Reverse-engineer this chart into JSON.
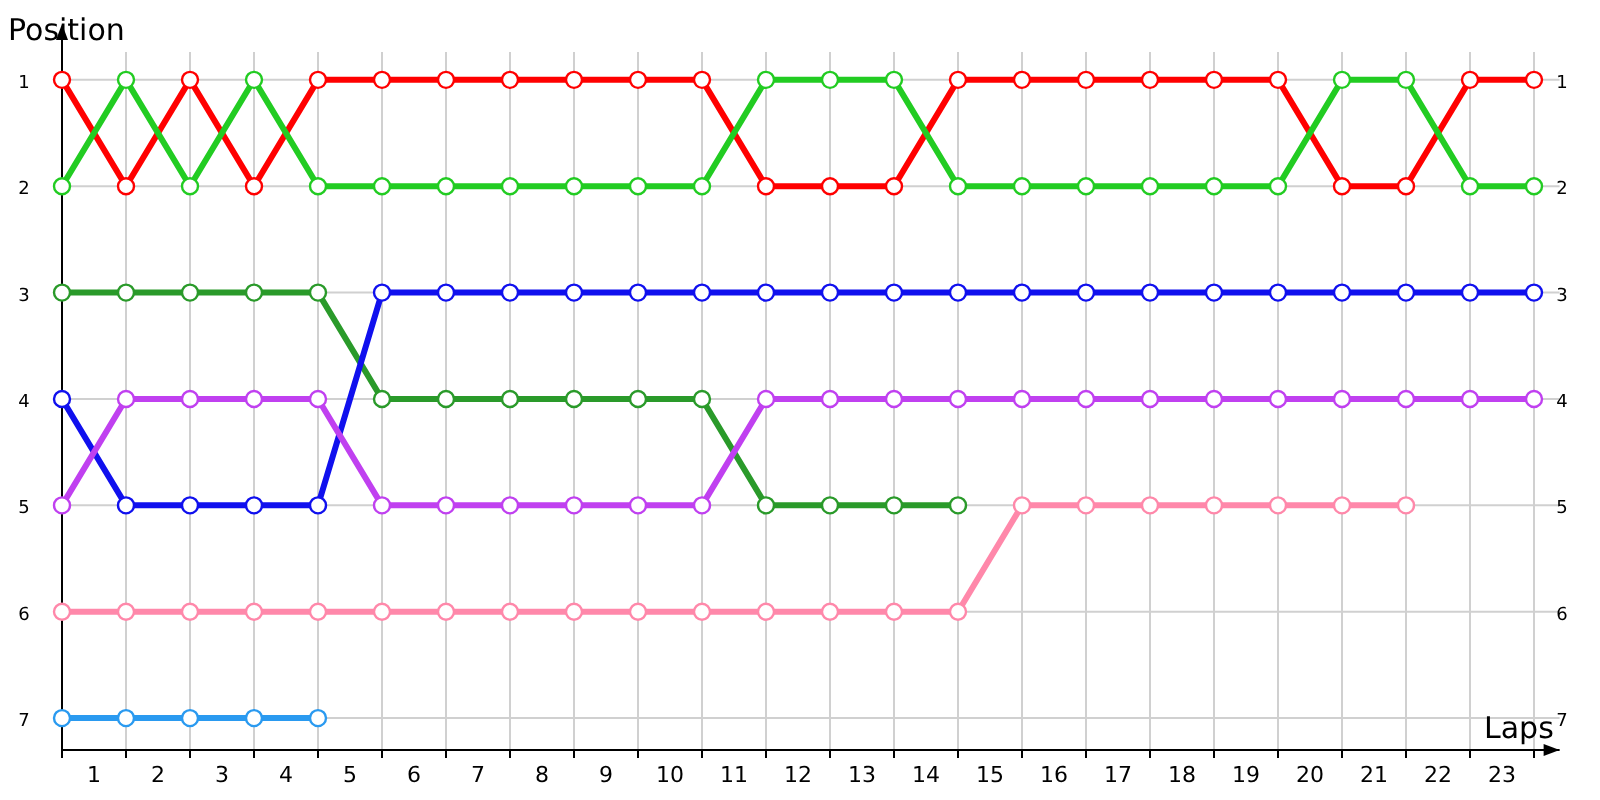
{
  "chart_data": {
    "type": "line",
    "xlabel": "Laps",
    "ylabel": "Position",
    "x": [
      0,
      1,
      2,
      3,
      4,
      5,
      6,
      7,
      8,
      9,
      10,
      11,
      12,
      13,
      14,
      15,
      16,
      17,
      18,
      19,
      20,
      21,
      22,
      23
    ],
    "series": [
      {
        "color": "#ff0000",
        "values": [
          1,
          2,
          1,
          2,
          1,
          1,
          1,
          1,
          1,
          1,
          1,
          2,
          2,
          2,
          1,
          1,
          1,
          1,
          1,
          1,
          2,
          2,
          1,
          1
        ]
      },
      {
        "color": "#22cc22",
        "values": [
          2,
          1,
          2,
          1,
          2,
          2,
          2,
          2,
          2,
          2,
          2,
          1,
          1,
          1,
          2,
          2,
          2,
          2,
          2,
          2,
          1,
          1,
          2,
          2
        ]
      },
      {
        "color": "#2a9a2a",
        "values": [
          3,
          3,
          3,
          3,
          3,
          4,
          4,
          4,
          4,
          4,
          4,
          5,
          5,
          5,
          5,
          null,
          null,
          null,
          null,
          null,
          null,
          null,
          null,
          null
        ]
      },
      {
        "color": "#1010ee",
        "values": [
          4,
          5,
          5,
          5,
          5,
          3,
          3,
          3,
          3,
          3,
          3,
          3,
          3,
          3,
          3,
          3,
          3,
          3,
          3,
          3,
          3,
          3,
          3,
          3
        ]
      },
      {
        "color": "#c040f0",
        "values": [
          5,
          4,
          4,
          4,
          4,
          5,
          5,
          5,
          5,
          5,
          5,
          4,
          4,
          4,
          4,
          4,
          4,
          4,
          4,
          4,
          4,
          4,
          4,
          4
        ]
      },
      {
        "color": "#ff88aa",
        "values": [
          6,
          6,
          6,
          6,
          6,
          6,
          6,
          6,
          6,
          6,
          6,
          6,
          6,
          6,
          6,
          5,
          5,
          5,
          5,
          5,
          5,
          5,
          null,
          null
        ]
      },
      {
        "color": "#2a9af0",
        "values": [
          7,
          7,
          7,
          7,
          7,
          null,
          null,
          null,
          null,
          null,
          null,
          null,
          null,
          null,
          null,
          null,
          null,
          null,
          null,
          null,
          null,
          null,
          null,
          null
        ]
      }
    ],
    "xlim": [
      0,
      23.4
    ],
    "xticks": [
      {
        "value": 0,
        "label": null
      },
      {
        "value": 0.5,
        "label": "1"
      },
      {
        "value": 1,
        "label": null
      },
      {
        "value": 1.5,
        "label": "2"
      },
      {
        "value": 2,
        "label": null
      },
      {
        "value": 2.5,
        "label": "3"
      },
      {
        "value": 3,
        "label": null
      },
      {
        "value": 3.5,
        "label": "4"
      },
      {
        "value": 4,
        "label": null
      },
      {
        "value": 4.5,
        "label": "5"
      },
      {
        "value": 5,
        "label": null
      },
      {
        "value": 5.5,
        "label": "6"
      },
      {
        "value": 6,
        "label": null
      },
      {
        "value": 6.5,
        "label": "7"
      },
      {
        "value": 7,
        "label": null
      },
      {
        "value": 7.5,
        "label": "8"
      },
      {
        "value": 8,
        "label": null
      },
      {
        "value": 8.5,
        "label": "9"
      },
      {
        "value": 9,
        "label": null
      },
      {
        "value": 9.5,
        "label": "10"
      },
      {
        "value": 10,
        "label": null
      },
      {
        "value": 10.5,
        "label": "11"
      },
      {
        "value": 11,
        "label": null
      },
      {
        "value": 11.5,
        "label": "12"
      },
      {
        "value": 12,
        "label": null
      },
      {
        "value": 12.5,
        "label": "13"
      },
      {
        "value": 13,
        "label": null
      },
      {
        "value": 13.5,
        "label": "14"
      },
      {
        "value": 14,
        "label": null
      },
      {
        "value": 14.5,
        "label": "15"
      },
      {
        "value": 15,
        "label": null
      },
      {
        "value": 15.5,
        "label": "16"
      },
      {
        "value": 16,
        "label": null
      },
      {
        "value": 16.5,
        "label": "17"
      },
      {
        "value": 17,
        "label": null
      },
      {
        "value": 17.5,
        "label": "18"
      },
      {
        "value": 18,
        "label": null
      },
      {
        "value": 18.5,
        "label": "19"
      },
      {
        "value": 19,
        "label": null
      },
      {
        "value": 19.5,
        "label": "20"
      },
      {
        "value": 20,
        "label": null
      },
      {
        "value": 20.5,
        "label": "21"
      },
      {
        "value": 21,
        "label": null
      },
      {
        "value": 21.5,
        "label": "22"
      },
      {
        "value": 22,
        "label": null
      },
      {
        "value": 22.5,
        "label": "23"
      },
      {
        "value": 23,
        "label": null
      }
    ],
    "ylim": [
      7.3,
      0.55
    ],
    "yticks": [
      1,
      2,
      3,
      4,
      5,
      6,
      7
    ],
    "y2lim": [
      7.3,
      0.55
    ],
    "y2ticks": [
      1,
      2,
      3,
      4,
      5,
      6,
      7
    ],
    "grid": true,
    "marker": "circle",
    "line_style": "solid"
  }
}
